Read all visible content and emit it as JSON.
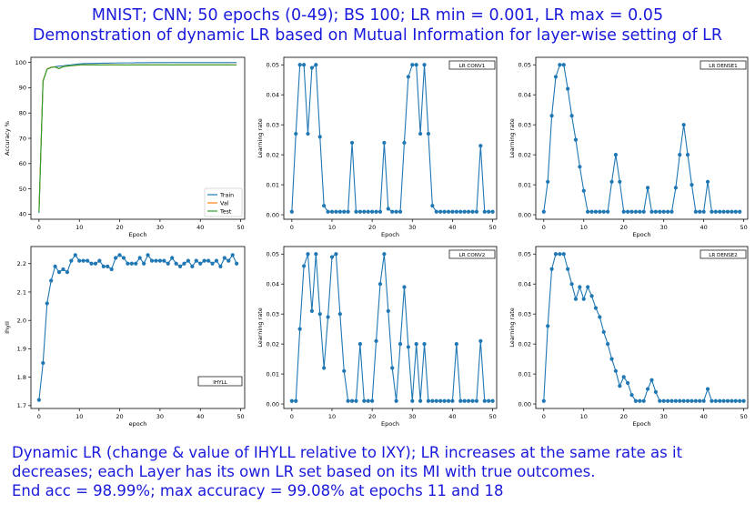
{
  "header": {
    "line1": "MNIST; CNN; 50 epochs (0-49); BS 100; LR min = 0.001, LR max = 0.05",
    "line2": "Demonstration of dynamic LR based on Mutual Information for layer-wise setting of LR"
  },
  "footer": {
    "line1": "Dynamic LR (change & value of IHYLL relative to IXY); LR increases at the same rate as it",
    "line2": "decreases; each Layer has its own LR set based on its MI with true outcomes.",
    "line3": "End acc = 98.99%; max accuracy = 99.08% at epochs 11 and 18"
  },
  "chart_data": [
    {
      "id": "accuracy",
      "type": "line",
      "xlabel": "Epoch",
      "ylabel": "Accuracy %",
      "xlim": [
        -2,
        51
      ],
      "ylim": [
        38,
        102
      ],
      "xticks": [
        0,
        10,
        20,
        30,
        40,
        50
      ],
      "yticks": [
        40,
        50,
        60,
        70,
        80,
        90,
        100
      ],
      "legend": "bottom-right",
      "series": [
        {
          "name": "Train",
          "color": "#1f77b4",
          "values": [
            40.5,
            92.5,
            97.3,
            98.0,
            98.3,
            98.5,
            98.6,
            98.9,
            99.0,
            99.2,
            99.4,
            99.5,
            99.55,
            99.6,
            99.6,
            99.65,
            99.7,
            99.7,
            99.75,
            99.75,
            99.8,
            99.8,
            99.8,
            99.8,
            99.85,
            99.85,
            99.85,
            99.85,
            99.9,
            99.9,
            99.9,
            99.9,
            99.9,
            99.9,
            99.9,
            99.9,
            99.9,
            99.9,
            99.9,
            99.9,
            99.9,
            99.9,
            99.9,
            99.9,
            99.9,
            99.9,
            99.9,
            99.9,
            99.9,
            99.9
          ]
        },
        {
          "name": "Val",
          "color": "#ff7f0e",
          "values": [
            41.0,
            92.8,
            97.4,
            98.1,
            98.2,
            97.6,
            98.4,
            98.5,
            98.7,
            98.8,
            98.9,
            99.05,
            98.95,
            99.0,
            99.0,
            98.95,
            99.0,
            99.0,
            99.05,
            99.0,
            99.0,
            99.0,
            98.95,
            99.0,
            99.0,
            99.0,
            99.0,
            99.0,
            99.0,
            99.0,
            99.0,
            99.0,
            99.0,
            98.95,
            99.0,
            99.0,
            99.0,
            99.0,
            99.0,
            99.0,
            99.0,
            99.0,
            99.0,
            99.0,
            99.0,
            99.0,
            99.0,
            99.0,
            99.0,
            99.0
          ]
        },
        {
          "name": "Test",
          "color": "#2ca02c",
          "values": [
            40.8,
            92.6,
            97.3,
            98.0,
            98.2,
            97.5,
            98.3,
            98.5,
            98.7,
            98.85,
            98.95,
            99.08,
            99.0,
            99.0,
            99.0,
            98.98,
            99.0,
            99.02,
            99.08,
            99.0,
            99.0,
            99.0,
            98.98,
            99.0,
            99.0,
            99.0,
            99.0,
            99.0,
            99.0,
            99.0,
            99.0,
            99.0,
            99.0,
            98.98,
            99.0,
            99.0,
            99.0,
            99.0,
            99.0,
            99.0,
            99.0,
            99.0,
            99.0,
            99.0,
            99.0,
            99.0,
            99.0,
            99.0,
            98.99,
            98.99
          ]
        }
      ]
    },
    {
      "id": "lr_conv1",
      "type": "line",
      "label": "LR CONV1",
      "xlabel": "Epoch",
      "ylabel": "Learning rate",
      "xlim": [
        -2,
        51
      ],
      "ylim": [
        -0.0015,
        0.0525
      ],
      "xticks": [
        0,
        10,
        20,
        30,
        40,
        50
      ],
      "yticks": [
        0.0,
        0.01,
        0.02,
        0.03,
        0.04,
        0.05
      ],
      "yformat": 2,
      "markers": true,
      "series": [
        {
          "color": "#1f77b4",
          "values": [
            0.001,
            0.027,
            0.05,
            0.05,
            0.027,
            0.049,
            0.05,
            0.026,
            0.003,
            0.001,
            0.001,
            0.001,
            0.001,
            0.001,
            0.001,
            0.024,
            0.001,
            0.001,
            0.001,
            0.001,
            0.001,
            0.001,
            0.001,
            0.024,
            0.002,
            0.001,
            0.001,
            0.001,
            0.024,
            0.046,
            0.05,
            0.05,
            0.027,
            0.05,
            0.027,
            0.003,
            0.001,
            0.001,
            0.001,
            0.001,
            0.001,
            0.001,
            0.001,
            0.001,
            0.001,
            0.001,
            0.001,
            0.023,
            0.001,
            0.001,
            0.001
          ]
        }
      ]
    },
    {
      "id": "lr_dense1",
      "type": "line",
      "label": "LR DENSE1",
      "xlabel": "Epoch",
      "ylabel": "Learning rate",
      "xlim": [
        -2,
        51
      ],
      "ylim": [
        -0.0015,
        0.0525
      ],
      "xticks": [
        0,
        10,
        20,
        30,
        40,
        50
      ],
      "yticks": [
        0.0,
        0.01,
        0.02,
        0.03,
        0.04,
        0.05
      ],
      "yformat": 2,
      "markers": true,
      "series": [
        {
          "color": "#1f77b4",
          "values": [
            0.001,
            0.011,
            0.033,
            0.046,
            0.05,
            0.05,
            0.042,
            0.033,
            0.025,
            0.016,
            0.008,
            0.001,
            0.001,
            0.001,
            0.001,
            0.001,
            0.001,
            0.011,
            0.02,
            0.011,
            0.001,
            0.001,
            0.001,
            0.001,
            0.001,
            0.001,
            0.009,
            0.001,
            0.001,
            0.001,
            0.001,
            0.001,
            0.001,
            0.009,
            0.02,
            0.03,
            0.02,
            0.01,
            0.001,
            0.001,
            0.001,
            0.011,
            0.001,
            0.001,
            0.001,
            0.001,
            0.001,
            0.001,
            0.001,
            0.001
          ]
        }
      ]
    },
    {
      "id": "ihyll",
      "type": "line",
      "label": "IHYLL",
      "xlabel": "epoch",
      "ylabel": "IhyII",
      "xlim": [
        -2,
        51
      ],
      "ylim": [
        1.69,
        2.26
      ],
      "xticks": [
        0,
        10,
        20,
        30,
        40,
        50
      ],
      "yticks": [
        1.7,
        1.8,
        1.9,
        2.0,
        2.1,
        2.2
      ],
      "yformat": 1,
      "markers": true,
      "series": [
        {
          "color": "#1f77b4",
          "values": [
            1.72,
            1.85,
            2.06,
            2.14,
            2.19,
            2.17,
            2.18,
            2.17,
            2.21,
            2.23,
            2.21,
            2.21,
            2.21,
            2.2,
            2.2,
            2.21,
            2.19,
            2.19,
            2.18,
            2.22,
            2.23,
            2.22,
            2.2,
            2.2,
            2.2,
            2.22,
            2.2,
            2.23,
            2.21,
            2.21,
            2.21,
            2.21,
            2.2,
            2.22,
            2.2,
            2.19,
            2.2,
            2.21,
            2.19,
            2.21,
            2.2,
            2.21,
            2.21,
            2.2,
            2.21,
            2.19,
            2.22,
            2.21,
            2.23,
            2.2
          ]
        }
      ]
    },
    {
      "id": "lr_conv2",
      "type": "line",
      "label": "LR CONV2",
      "xlabel": "Epoch",
      "ylabel": "Learning rate",
      "xlim": [
        -2,
        51
      ],
      "ylim": [
        -0.0015,
        0.0525
      ],
      "xticks": [
        0,
        10,
        20,
        30,
        40,
        50
      ],
      "yticks": [
        0.0,
        0.01,
        0.02,
        0.03,
        0.04,
        0.05
      ],
      "yformat": 2,
      "markers": true,
      "series": [
        {
          "color": "#1f77b4",
          "values": [
            0.001,
            0.001,
            0.025,
            0.046,
            0.05,
            0.031,
            0.05,
            0.03,
            0.012,
            0.029,
            0.049,
            0.05,
            0.03,
            0.011,
            0.001,
            0.001,
            0.001,
            0.02,
            0.001,
            0.001,
            0.001,
            0.021,
            0.04,
            0.05,
            0.031,
            0.012,
            0.001,
            0.02,
            0.039,
            0.019,
            0.001,
            0.02,
            0.001,
            0.02,
            0.001,
            0.001,
            0.001,
            0.001,
            0.001,
            0.001,
            0.001,
            0.02,
            0.001,
            0.001,
            0.001,
            0.001,
            0.001,
            0.021,
            0.001,
            0.001,
            0.001
          ]
        }
      ]
    },
    {
      "id": "lr_dense2",
      "type": "line",
      "label": "LR DENSE2",
      "xlabel": "Epoch",
      "ylabel": "Learning rate",
      "xlim": [
        -2,
        51
      ],
      "ylim": [
        -0.0015,
        0.0525
      ],
      "xticks": [
        0,
        10,
        20,
        30,
        40,
        50
      ],
      "yticks": [
        0.0,
        0.01,
        0.02,
        0.03,
        0.04,
        0.05
      ],
      "yformat": 2,
      "markers": true,
      "series": [
        {
          "color": "#1f77b4",
          "values": [
            0.001,
            0.026,
            0.045,
            0.05,
            0.05,
            0.05,
            0.045,
            0.04,
            0.035,
            0.039,
            0.035,
            0.039,
            0.036,
            0.032,
            0.029,
            0.024,
            0.02,
            0.015,
            0.011,
            0.006,
            0.009,
            0.007,
            0.003,
            0.001,
            0.001,
            0.001,
            0.005,
            0.008,
            0.004,
            0.001,
            0.001,
            0.001,
            0.001,
            0.001,
            0.001,
            0.001,
            0.001,
            0.001,
            0.001,
            0.001,
            0.001,
            0.005,
            0.001,
            0.001,
            0.001,
            0.001,
            0.001,
            0.001,
            0.001,
            0.001,
            0.001
          ]
        }
      ]
    }
  ]
}
